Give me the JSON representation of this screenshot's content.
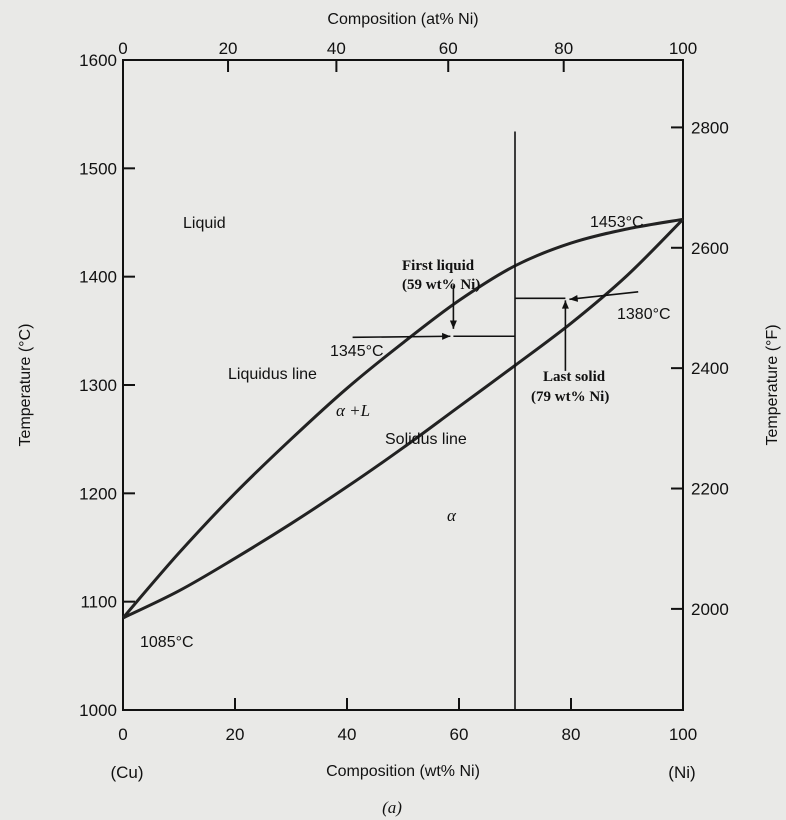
{
  "chart_data": {
    "type": "line",
    "title": "",
    "caption": "(a)",
    "axes": {
      "x_bottom": {
        "label": "Composition (wt% Ni)",
        "range": [
          0,
          100
        ],
        "ticks": [
          0,
          20,
          40,
          60,
          80,
          100
        ],
        "end_labels": {
          "left": "(Cu)",
          "right": "(Ni)"
        }
      },
      "x_top": {
        "label": "Composition (at% Ni)",
        "ticks": [
          0,
          20,
          40,
          60,
          80,
          100
        ]
      },
      "y_left": {
        "label": "Temperature (°C)",
        "range": [
          1000,
          1600
        ],
        "ticks": [
          1000,
          1100,
          1200,
          1300,
          1400,
          1500,
          1600
        ]
      },
      "y_right": {
        "label": "Temperature (°F)",
        "ticks": [
          2000,
          2200,
          2400,
          2600,
          2800
        ]
      }
    },
    "series": [
      {
        "name": "Liquidus line",
        "x": [
          0,
          10,
          20,
          30,
          40,
          50,
          60,
          70,
          80,
          90,
          100
        ],
        "y": [
          1085,
          1145,
          1200,
          1250,
          1297,
          1339,
          1378,
          1410,
          1431,
          1444,
          1453
        ]
      },
      {
        "name": "Solidus line",
        "x": [
          0,
          10,
          20,
          30,
          40,
          50,
          60,
          70,
          80,
          90,
          100
        ],
        "y": [
          1085,
          1110,
          1140,
          1172,
          1206,
          1242,
          1280,
          1318,
          1357,
          1401,
          1453
        ]
      }
    ],
    "construction": {
      "composition": 70,
      "temperature": 1345,
      "first_liquid_x": 59,
      "first_liquid_T": 1350,
      "last_solid_x": 79,
      "last_solid_T": 1380
    },
    "annotations": {
      "liquid_region": "Liquid",
      "two_phase_region": "α +L",
      "solid_region": "α",
      "liquidus": "Liquidus line",
      "solidus": "Solidus line",
      "first_liquid_title": "First liquid",
      "first_liquid_comp": "(59 wt% Ni)",
      "last_solid_title": "Last solid",
      "last_solid_comp": "(79 wt% Ni)",
      "t_1345": "1345°C",
      "t_1380": "1380°C",
      "t_1453": "1453°C",
      "t_1085": "1085°C"
    },
    "grid": false,
    "legend": "none"
  }
}
